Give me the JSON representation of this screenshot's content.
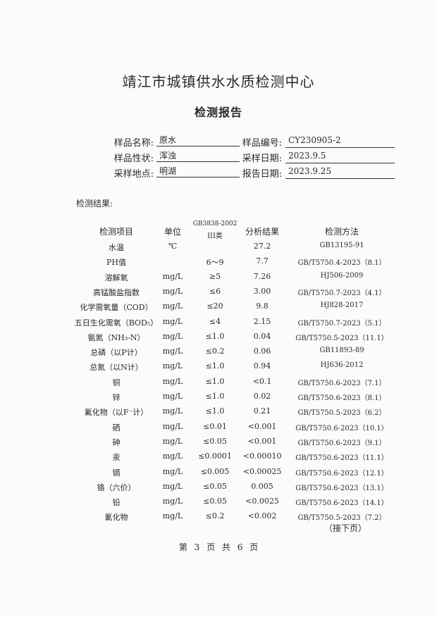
{
  "header": {
    "title": "靖江市城镇供水水质检测中心",
    "subtitle": "检测报告"
  },
  "info": {
    "sample_name_label": "样品名称:",
    "sample_name": "原水",
    "sample_no_label": "样品编号:",
    "sample_no": "CY230905-2",
    "sample_state_label": "样品性状:",
    "sample_state": "浑浊",
    "sampling_date_label": "采样日期:",
    "sampling_date": "2023.9.5",
    "sampling_site_label": "采样地点:",
    "sampling_site": "明湖",
    "report_date_label": "报告日期:",
    "report_date": "2023.9.25"
  },
  "results_label": "检测结果:",
  "table": {
    "headers": {
      "item": "检测项目",
      "unit": "单位",
      "standard_1": "GB3838-2002",
      "standard_2": "III类",
      "result": "分析结果",
      "method": "检测方法"
    },
    "rows": [
      {
        "item": "水温",
        "unit": "℃",
        "standard": "",
        "result": "27.2",
        "method": "GB13195-91"
      },
      {
        "item": "PH值",
        "unit": "",
        "standard": "6～9",
        "result": "7.7",
        "method": "GB/T5750.4-2023（8.1）"
      },
      {
        "item": "溶解氧",
        "unit": "mg/L",
        "standard": "≥5",
        "result": "7.26",
        "method": "HJ506-2009"
      },
      {
        "item": "高锰酸盐指数",
        "unit": "mg/L",
        "standard": "≤6",
        "result": "3.00",
        "method": "GB/T5750.7-2023（4.1）"
      },
      {
        "item": "化学需氧量（COD）",
        "unit": "mg/L",
        "standard": "≤20",
        "result": "9.8",
        "method": "HJ828-2017"
      },
      {
        "item": "五日生化需氧（BOD₅）",
        "unit": "mg/L",
        "standard": "≤4",
        "result": "2.15",
        "method": "GB/T5750.7-2023（5.1）"
      },
      {
        "item": "氨氮（NH₃-N）",
        "unit": "mg/L",
        "standard": "≤1.0",
        "result": "0.04",
        "method": "GB/T5750.5-2023（11.1）"
      },
      {
        "item": "总磷（以P计）",
        "unit": "mg/L",
        "standard": "≤0.2",
        "result": "0.06",
        "method": "GB11893-89"
      },
      {
        "item": "总氮（以N计）",
        "unit": "mg/L",
        "standard": "≤1.0",
        "result": "0.94",
        "method": "HJ636-2012"
      },
      {
        "item": "铜",
        "unit": "mg/L",
        "standard": "≤1.0",
        "result": "<0.1",
        "method": "GB/T5750.6-2023（7.1）"
      },
      {
        "item": "锌",
        "unit": "mg/L",
        "standard": "≤1.0",
        "result": "0.02",
        "method": "GB/T5750.6-2023（8.1）"
      },
      {
        "item": "氟化物（以F⁻计）",
        "unit": "mg/L",
        "standard": "≤1.0",
        "result": "0.21",
        "method": "GB/T5750.5-2023（6.2）"
      },
      {
        "item": "硒",
        "unit": "mg/L",
        "standard": "≤0.01",
        "result": "<0.001",
        "method": "GB/T5750.6-2023（10.1）"
      },
      {
        "item": "砷",
        "unit": "mg/L",
        "standard": "≤0.05",
        "result": "<0.001",
        "method": "GB/T5750.6-2023（9.1）"
      },
      {
        "item": "汞",
        "unit": "mg/L",
        "standard": "≤0.0001",
        "result": "<0.00010",
        "method": "GB/T5750.6-2023（11.1）"
      },
      {
        "item": "镉",
        "unit": "mg/L",
        "standard": "≤0.005",
        "result": "<0.00025",
        "method": "GB/T5750.6-2023（12.1）"
      },
      {
        "item": "铬（六价）",
        "unit": "mg/L",
        "standard": "≤0.05",
        "result": "0.005",
        "method": "GB/T5750.6-2023（13.1）"
      },
      {
        "item": "铅",
        "unit": "mg/L",
        "standard": "≤0.05",
        "result": "<0.0025",
        "method": "GB/T5750.6-2023（14.1）"
      },
      {
        "item": "氰化物",
        "unit": "mg/L",
        "standard": "≤0.2",
        "result": "<0.002",
        "method": "GB/T5750.5-2023（7.2）"
      }
    ]
  },
  "continued": "（接下页）",
  "footer": "第 3 页 共 6 页"
}
